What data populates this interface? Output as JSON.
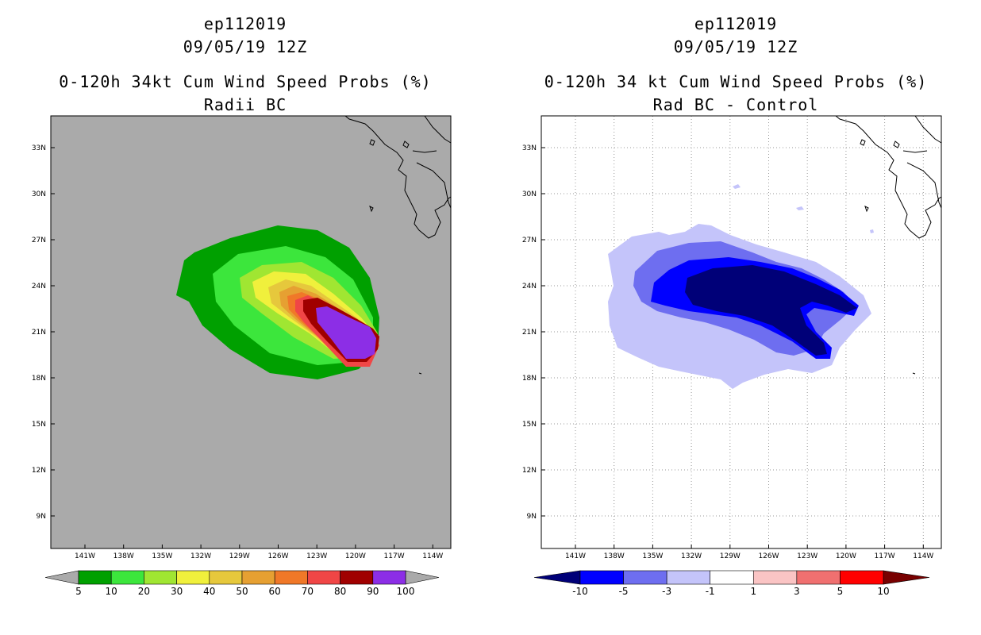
{
  "chart_data": [
    {
      "type": "filled-contour-map",
      "storm_id": "ep112019",
      "datetime": "09/05/19 12Z",
      "title": "0-120h 34kt Cum Wind Speed Probs (%)",
      "subtitle": "Radii BC",
      "xlabel": "",
      "ylabel": "",
      "x_ticks": [
        "141W",
        "138W",
        "135W",
        "132W",
        "129W",
        "126W",
        "123W",
        "120W",
        "117W",
        "114W"
      ],
      "y_ticks": [
        "33N",
        "30N",
        "27N",
        "24N",
        "21N",
        "18N",
        "15N",
        "12N",
        "9N"
      ],
      "grid": false,
      "background_color": "#aaaaaa",
      "colorbar": {
        "labels": [
          "5",
          "10",
          "20",
          "30",
          "40",
          "50",
          "60",
          "70",
          "80",
          "90",
          "100"
        ],
        "colors": [
          "#00a000",
          "#3ce63c",
          "#a0e632",
          "#f0f03c",
          "#e6c83c",
          "#e6a032",
          "#f07828",
          "#f04646",
          "#a00000",
          "#8c2ee6"
        ],
        "under_color": "#aaaaaa",
        "over_color": "#aaaaaa"
      }
    },
    {
      "type": "filled-contour-map",
      "storm_id": "ep112019",
      "datetime": "09/05/19 12Z",
      "title": "0-120h 34 kt Cum Wind Speed Probs (%)",
      "subtitle": "Rad BC - Control",
      "xlabel": "",
      "ylabel": "",
      "x_ticks": [
        "141W",
        "138W",
        "135W",
        "132W",
        "129W",
        "126W",
        "123W",
        "120W",
        "117W",
        "114W"
      ],
      "y_ticks": [
        "33N",
        "30N",
        "27N",
        "24N",
        "21N",
        "18N",
        "15N",
        "12N",
        "9N"
      ],
      "grid": true,
      "background_color": "#ffffff",
      "colorbar": {
        "labels": [
          "-10",
          "-5",
          "-3",
          "-1",
          "1",
          "3",
          "5",
          "10"
        ],
        "colors": [
          "#0000ff",
          "#6e6ef0",
          "#c4c4fa",
          "#ffffff",
          "#fac4c4",
          "#f07070",
          "#ff0000"
        ],
        "under_color": "#000078",
        "over_color": "#780000"
      }
    }
  ]
}
